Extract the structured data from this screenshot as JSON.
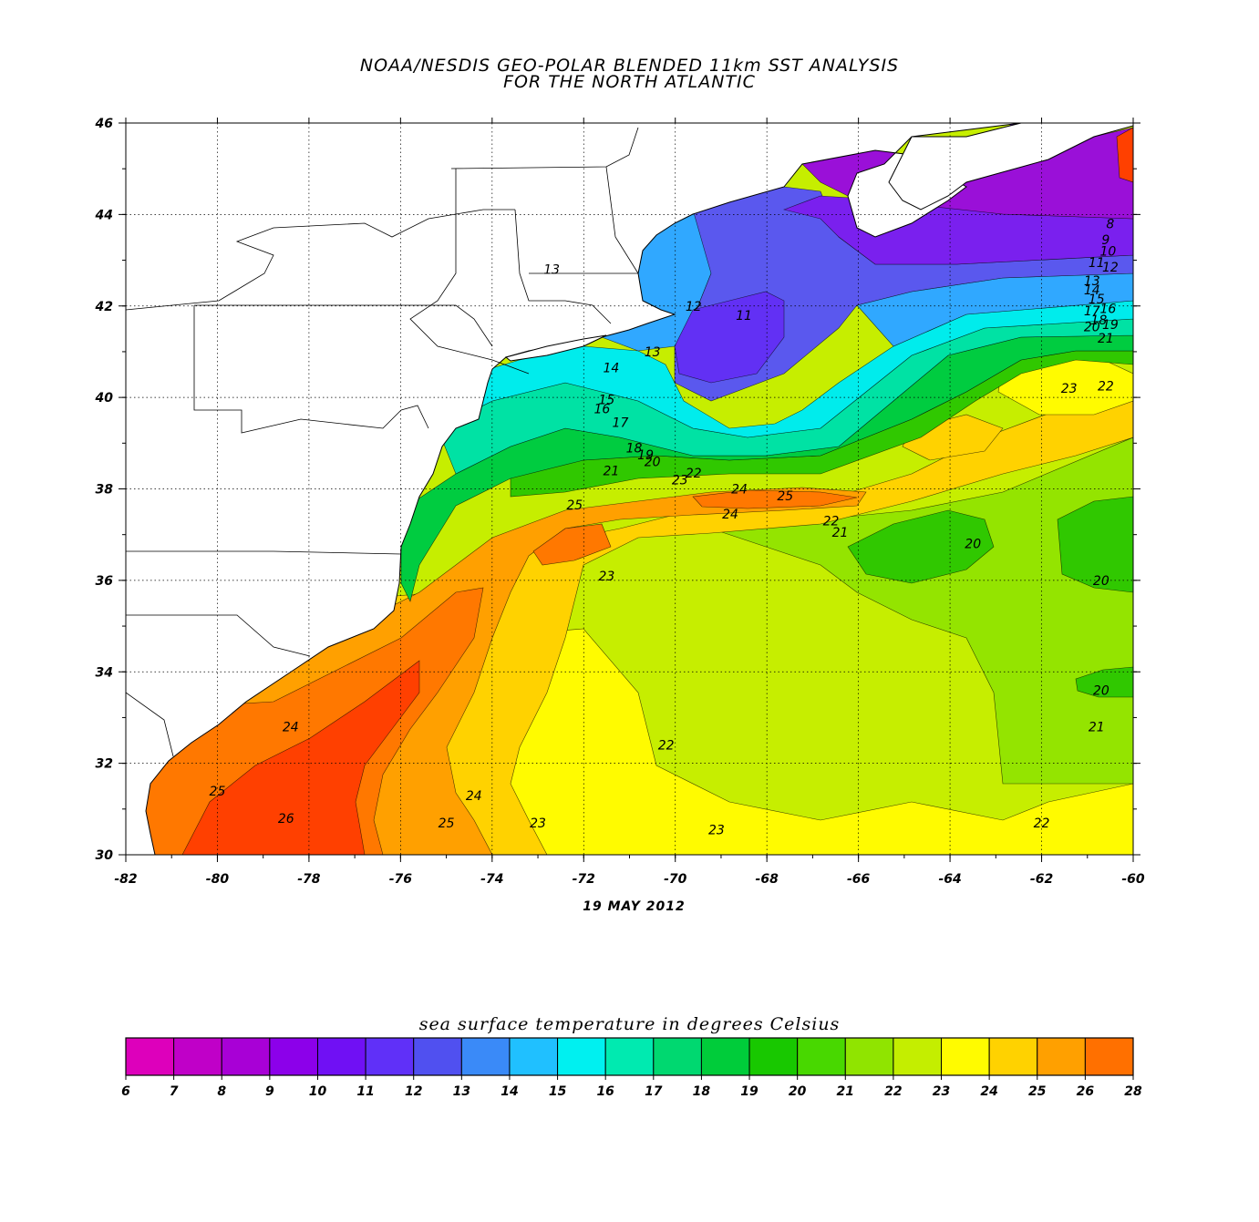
{
  "title": {
    "line1": "NOAA/NESDIS GEO-POLAR BLENDED 11km SST ANALYSIS",
    "line2": "FOR THE NORTH ATLANTIC"
  },
  "date": "19 MAY 2012",
  "legend_title": "sea surface temperature in degrees Celsius",
  "colorbar": {
    "values": [
      "6",
      "7",
      "8",
      "9",
      "10",
      "11",
      "12",
      "13",
      "14",
      "15",
      "16",
      "17",
      "18",
      "19",
      "20",
      "21",
      "22",
      "23",
      "24",
      "25",
      "26",
      "28"
    ],
    "colors": [
      "#dd00bb",
      "#c000c8",
      "#a800d6",
      "#8c00ea",
      "#7010f4",
      "#6030f8",
      "#5050f0",
      "#3a8af8",
      "#20c0ff",
      "#00f0f0",
      "#00eab0",
      "#00d870",
      "#00cc3a",
      "#18c800",
      "#48d800",
      "#90e400",
      "#c4ee00",
      "#fffb00",
      "#ffd200",
      "#ffa000",
      "#ff7000",
      "#ff3800"
    ]
  },
  "map": {
    "lon_range": [
      -82,
      -60
    ],
    "lat_range": [
      30,
      46
    ],
    "lon_ticks": [
      "-82",
      "-80",
      "-78",
      "-76",
      "-74",
      "-72",
      "-70",
      "-68",
      "-66",
      "-64",
      "-62",
      "-60"
    ],
    "lat_ticks": [
      "30",
      "32",
      "34",
      "36",
      "38",
      "40",
      "42",
      "44",
      "46"
    ],
    "colors": {
      "land": "#ffffff",
      "c_purple_deep": "#9a10d8",
      "c_purple": "#7a20ee",
      "c_violet": "#6230f4",
      "c_blue": "#5a58ee",
      "c_skyblue": "#30a8ff",
      "c_cyan": "#00ecec",
      "c_teal": "#00e2a4",
      "c_green": "#00cc40",
      "c_green2": "#30c800",
      "c_lime": "#94e400",
      "c_yellowgreen": "#c6ee00",
      "c_yellow": "#fffb00",
      "c_gold": "#ffd200",
      "c_orange": "#ffa000",
      "c_darkorange": "#ff7800",
      "c_red": "#ff4000"
    },
    "contour_labels": [
      {
        "text": "8",
        "lon": -60.5,
        "lat": 43.7
      },
      {
        "text": "9",
        "lon": -60.6,
        "lat": 43.35
      },
      {
        "text": "10",
        "lon": -60.55,
        "lat": 43.1
      },
      {
        "text": "11",
        "lon": -60.8,
        "lat": 42.85
      },
      {
        "text": "12",
        "lon": -60.5,
        "lat": 42.75
      },
      {
        "text": "13",
        "lon": -60.9,
        "lat": 42.45
      },
      {
        "text": "14",
        "lon": -60.9,
        "lat": 42.25
      },
      {
        "text": "15",
        "lon": -60.8,
        "lat": 42.05
      },
      {
        "text": "16",
        "lon": -60.55,
        "lat": 41.85
      },
      {
        "text": "17",
        "lon": -60.9,
        "lat": 41.8
      },
      {
        "text": "18",
        "lon": -60.75,
        "lat": 41.6
      },
      {
        "text": "19",
        "lon": -60.5,
        "lat": 41.5
      },
      {
        "text": "20",
        "lon": -60.9,
        "lat": 41.45
      },
      {
        "text": "21",
        "lon": -60.6,
        "lat": 41.2
      },
      {
        "text": "22",
        "lon": -60.6,
        "lat": 40.15
      },
      {
        "text": "23",
        "lon": -61.4,
        "lat": 40.1
      },
      {
        "text": "13",
        "lon": -72.7,
        "lat": 42.7
      },
      {
        "text": "12",
        "lon": -69.6,
        "lat": 41.9
      },
      {
        "text": "11",
        "lon": -68.5,
        "lat": 41.7
      },
      {
        "text": "13",
        "lon": -70.5,
        "lat": 40.9
      },
      {
        "text": "14",
        "lon": -71.4,
        "lat": 40.55
      },
      {
        "text": "15",
        "lon": -71.5,
        "lat": 39.85
      },
      {
        "text": "16",
        "lon": -71.6,
        "lat": 39.65
      },
      {
        "text": "17",
        "lon": -71.2,
        "lat": 39.35
      },
      {
        "text": "18",
        "lon": -70.9,
        "lat": 38.8
      },
      {
        "text": "19",
        "lon": -70.65,
        "lat": 38.65
      },
      {
        "text": "20",
        "lon": -70.5,
        "lat": 38.5
      },
      {
        "text": "21",
        "lon": -71.4,
        "lat": 38.3
      },
      {
        "text": "22",
        "lon": -69.6,
        "lat": 38.25
      },
      {
        "text": "23",
        "lon": -69.9,
        "lat": 38.1
      },
      {
        "text": "24",
        "lon": -68.6,
        "lat": 37.9
      },
      {
        "text": "25",
        "lon": -67.6,
        "lat": 37.75
      },
      {
        "text": "25",
        "lon": -72.2,
        "lat": 37.55
      },
      {
        "text": "24",
        "lon": -68.8,
        "lat": 37.35
      },
      {
        "text": "22",
        "lon": -66.6,
        "lat": 37.2
      },
      {
        "text": "21",
        "lon": -66.4,
        "lat": 36.95
      },
      {
        "text": "20",
        "lon": -63.5,
        "lat": 36.7
      },
      {
        "text": "20",
        "lon": -60.7,
        "lat": 35.9
      },
      {
        "text": "23",
        "lon": -71.5,
        "lat": 36.0
      },
      {
        "text": "20",
        "lon": -60.7,
        "lat": 33.5
      },
      {
        "text": "21",
        "lon": -60.8,
        "lat": 32.7
      },
      {
        "text": "22",
        "lon": -70.2,
        "lat": 32.3
      },
      {
        "text": "24",
        "lon": -78.4,
        "lat": 32.7
      },
      {
        "text": "25",
        "lon": -80.0,
        "lat": 31.3
      },
      {
        "text": "26",
        "lon": -78.5,
        "lat": 30.7
      },
      {
        "text": "24",
        "lon": -74.4,
        "lat": 31.2
      },
      {
        "text": "25",
        "lon": -75.0,
        "lat": 30.6
      },
      {
        "text": "23",
        "lon": -73.0,
        "lat": 30.6
      },
      {
        "text": "23",
        "lon": -69.1,
        "lat": 30.45
      },
      {
        "text": "22",
        "lon": -62.0,
        "lat": 30.6
      }
    ]
  }
}
